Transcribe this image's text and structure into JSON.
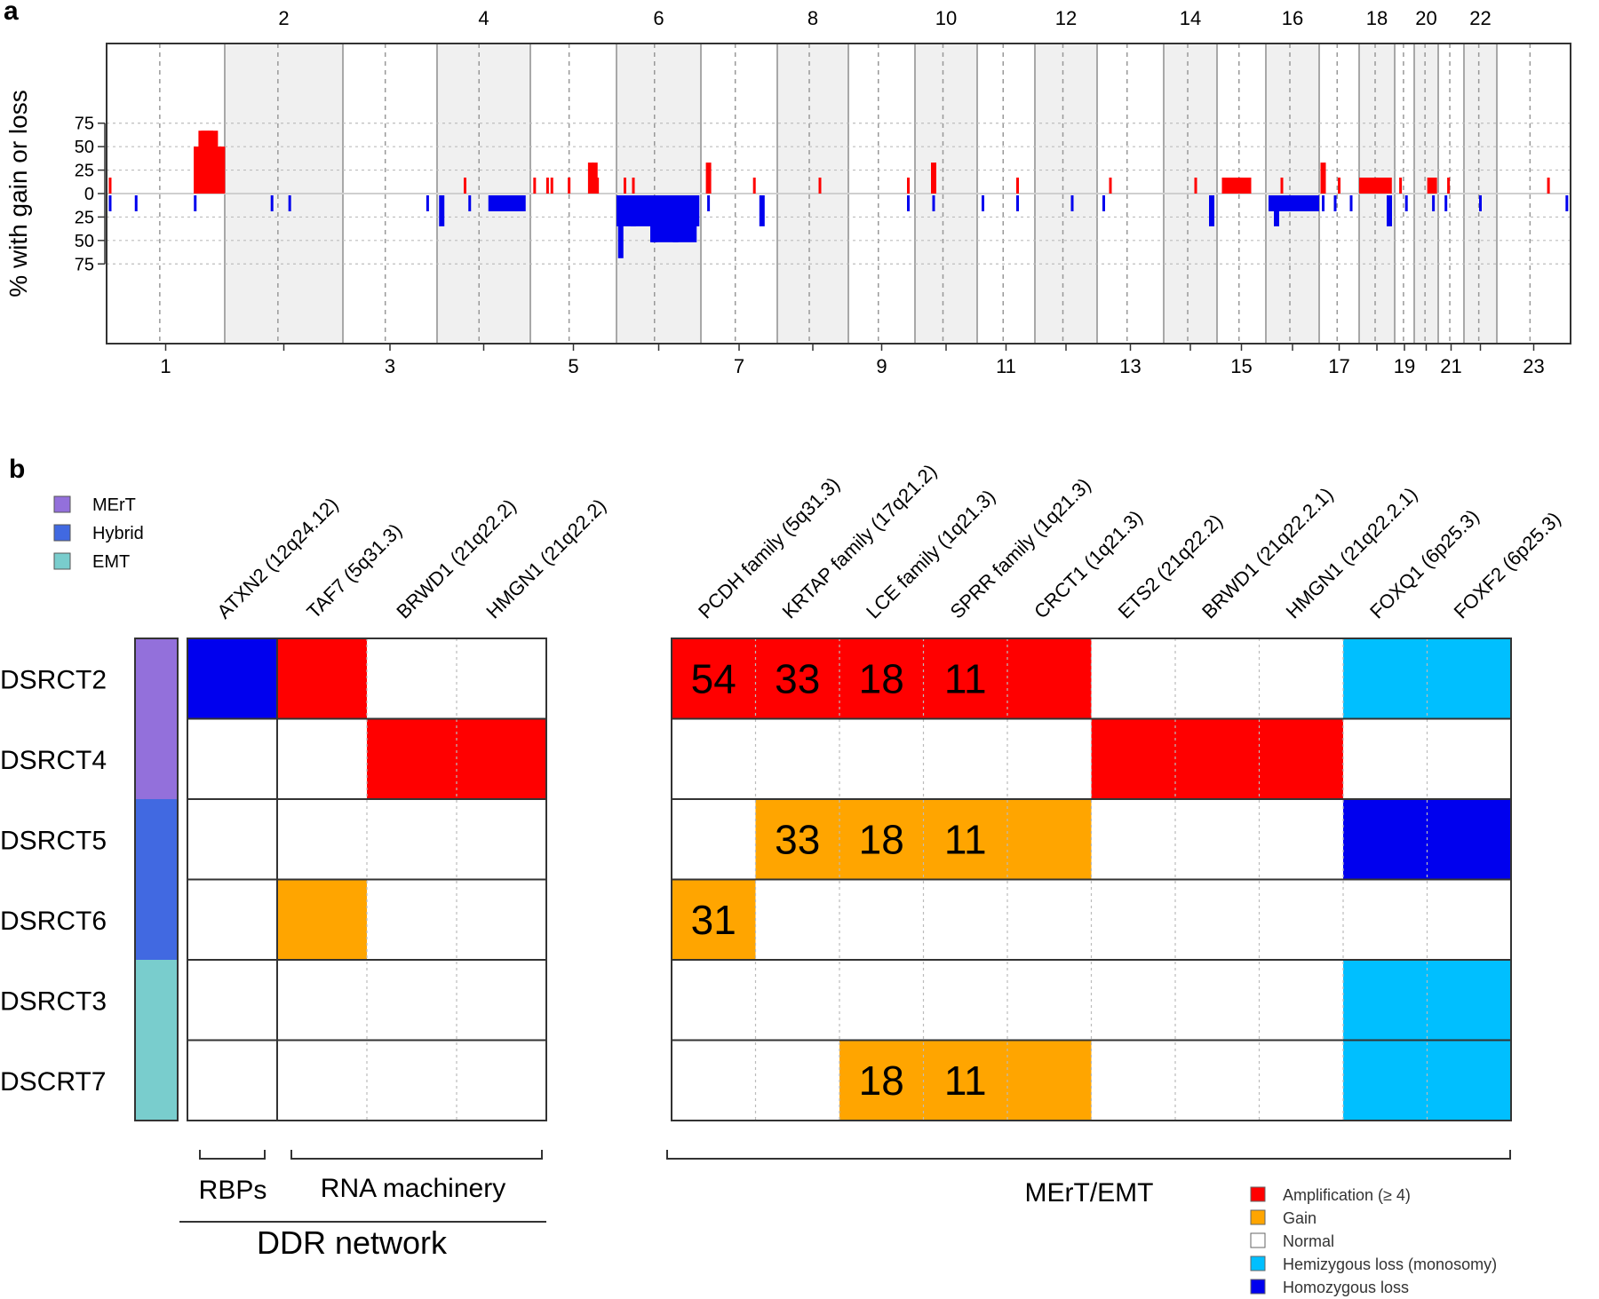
{
  "panel_a": {
    "panel_label": "a",
    "ylabel": "% with gain or loss",
    "y_ticks": [
      "75",
      "50",
      "25",
      "0",
      "25",
      "50",
      "75"
    ],
    "chrom_labels_top": [
      "2",
      "4",
      "6",
      "8",
      "10",
      "12",
      "14",
      "16",
      "18",
      "20",
      "22"
    ],
    "chrom_labels_bottom": [
      "1",
      "3",
      "5",
      "7",
      "9",
      "11",
      "13",
      "15",
      "17",
      "19",
      "21",
      "23"
    ]
  },
  "panel_b": {
    "panel_label": "b",
    "subtype_legend": [
      "MErT",
      "Hybrid",
      "EMT"
    ],
    "left_columns": [
      "ATXN2 (12q24.12)",
      "TAF7 (5q31.3)",
      "BRWD1 (21q22.2)",
      "HMGN1 (21q22.2)"
    ],
    "right_columns": [
      "PCDH family (5q31.3)",
      "KRTAP family (17q21.2)",
      "LCE family (1q21.3)",
      "SPRR family (1q21.3)",
      "CRCT1 (1q21.3)",
      "ETS2 (21q22.2)",
      "BRWD1 (21q22.2.1)",
      "HMGN1 (21q22.2.1)",
      "FOXQ1 (6p25.3)",
      "FOXF2 (6p25.3)"
    ],
    "rows": [
      "DSRCT2",
      "DSRCT4",
      "DSRCT5",
      "DSRCT6",
      "DSRCT3",
      "DSCRT7"
    ],
    "group_labels": {
      "rbps": "RBPs",
      "rna": "RNA machinery",
      "ddr": "DDR network",
      "mert": "MErT/EMT"
    },
    "status_legend": [
      "Amplification (≥ 4)",
      "Gain",
      "Normal",
      "Hemizygous loss (monosomy)",
      "Homozygous loss"
    ]
  },
  "colors": {
    "amplification": "#ff0000",
    "gain": "#ffa500",
    "normal": "#ffffff",
    "hemizygous": "#00bfff",
    "homozygous": "#0000ee",
    "mert": "#9370db",
    "hybrid": "#4169e1",
    "emt": "#79cdcd",
    "chrom_shade": "#f0f0f0"
  },
  "chart_data": [
    {
      "type": "bar",
      "description_note": "",
      "ylabel": "% with gain or loss",
      "ylim": [
        -75,
        75
      ],
      "chromosomes": [
        "1",
        "2",
        "3",
        "4",
        "5",
        "6",
        "7",
        "8",
        "9",
        "10",
        "11",
        "12",
        "13",
        "14",
        "15",
        "16",
        "17",
        "18",
        "19",
        "20",
        "21",
        "22",
        "23"
      ],
      "gain_series": [
        {
          "chrom": "1",
          "pos": 0.03,
          "value": 17
        },
        {
          "chrom": "1",
          "pos": 0.76,
          "value": 50
        },
        {
          "chrom": "1",
          "pos": 0.8,
          "value": 67
        },
        {
          "chrom": "1",
          "pos": 0.84,
          "value": 67
        },
        {
          "chrom": "1",
          "pos": 0.88,
          "value": 67
        },
        {
          "chrom": "1",
          "pos": 0.9,
          "value": 50
        },
        {
          "chrom": "1",
          "pos": 0.92,
          "value": 67
        },
        {
          "chrom": "1",
          "pos": 0.94,
          "value": 33
        },
        {
          "chrom": "1",
          "pos": 0.98,
          "value": 50
        },
        {
          "chrom": "4",
          "pos": 0.3,
          "value": 17
        },
        {
          "chrom": "5",
          "pos": 0.05,
          "value": 17
        },
        {
          "chrom": "5",
          "pos": 0.2,
          "value": 17
        },
        {
          "chrom": "5",
          "pos": 0.25,
          "value": 17
        },
        {
          "chrom": "5",
          "pos": 0.45,
          "value": 17
        },
        {
          "chrom": "5",
          "pos": 0.7,
          "value": 33
        },
        {
          "chrom": "5",
          "pos": 0.75,
          "value": 33
        },
        {
          "chrom": "5",
          "pos": 0.78,
          "value": 17
        },
        {
          "chrom": "6",
          "pos": 0.1,
          "value": 17
        },
        {
          "chrom": "6",
          "pos": 0.2,
          "value": 17
        },
        {
          "chrom": "7",
          "pos": 0.1,
          "value": 33
        },
        {
          "chrom": "7",
          "pos": 0.7,
          "value": 17
        },
        {
          "chrom": "8",
          "pos": 0.6,
          "value": 17
        },
        {
          "chrom": "9",
          "pos": 0.9,
          "value": 17
        },
        {
          "chrom": "10",
          "pos": 0.3,
          "value": 33
        },
        {
          "chrom": "11",
          "pos": 0.7,
          "value": 17
        },
        {
          "chrom": "13",
          "pos": 0.2,
          "value": 17
        },
        {
          "chrom": "14",
          "pos": 0.6,
          "value": 17
        },
        {
          "chrom": "15",
          "pos": 0.5,
          "value": 17
        },
        {
          "chrom": "16",
          "pos": 0.3,
          "value": 17
        },
        {
          "chrom": "17",
          "pos": 0.1,
          "value": 33
        },
        {
          "chrom": "17",
          "pos": 0.5,
          "value": 17
        },
        {
          "chrom": "18",
          "pos": 0.5,
          "value": 17
        },
        {
          "chrom": "19",
          "pos": 0.3,
          "value": 17
        },
        {
          "chrom": "20",
          "pos": 0.6,
          "value": 17
        },
        {
          "chrom": "21",
          "pos": 0.4,
          "value": 17
        },
        {
          "chrom": "23",
          "pos": 0.7,
          "value": 17
        }
      ],
      "loss_series": [
        {
          "chrom": "1",
          "pos": 0.03,
          "value": 17
        },
        {
          "chrom": "1",
          "pos": 0.25,
          "value": 17
        },
        {
          "chrom": "1",
          "pos": 0.75,
          "value": 17
        },
        {
          "chrom": "2",
          "pos": 0.4,
          "value": 17
        },
        {
          "chrom": "2",
          "pos": 0.55,
          "value": 17
        },
        {
          "chrom": "3",
          "pos": 0.9,
          "value": 17
        },
        {
          "chrom": "4",
          "pos": 0.05,
          "value": 33
        },
        {
          "chrom": "4",
          "pos": 0.35,
          "value": 17
        },
        {
          "chrom": "4",
          "pos": 0.7,
          "value": 17
        },
        {
          "chrom": "4",
          "pos": 0.85,
          "value": 17
        },
        {
          "chrom": "6",
          "pos": 0.05,
          "value": 67
        },
        {
          "chrom": "6",
          "pos": 0.2,
          "value": 33
        },
        {
          "chrom": "6",
          "pos": 0.45,
          "value": 50
        },
        {
          "chrom": "6",
          "pos": 0.7,
          "value": 50
        },
        {
          "chrom": "6",
          "pos": 0.95,
          "value": 33
        },
        {
          "chrom": "7",
          "pos": 0.1,
          "value": 17
        },
        {
          "chrom": "7",
          "pos": 0.8,
          "value": 33
        },
        {
          "chrom": "9",
          "pos": 0.9,
          "value": 17
        },
        {
          "chrom": "10",
          "pos": 0.3,
          "value": 17
        },
        {
          "chrom": "11",
          "pos": 0.1,
          "value": 17
        },
        {
          "chrom": "11",
          "pos": 0.7,
          "value": 17
        },
        {
          "chrom": "12",
          "pos": 0.6,
          "value": 17
        },
        {
          "chrom": "13",
          "pos": 0.1,
          "value": 17
        },
        {
          "chrom": "14",
          "pos": 0.9,
          "value": 33
        },
        {
          "chrom": "16",
          "pos": 0.2,
          "value": 33
        },
        {
          "chrom": "16",
          "pos": 0.45,
          "value": 17
        },
        {
          "chrom": "16",
          "pos": 0.75,
          "value": 17
        },
        {
          "chrom": "17",
          "pos": 0.1,
          "value": 17
        },
        {
          "chrom": "17",
          "pos": 0.4,
          "value": 17
        },
        {
          "chrom": "17",
          "pos": 0.8,
          "value": 17
        },
        {
          "chrom": "18",
          "pos": 0.85,
          "value": 33
        },
        {
          "chrom": "19",
          "pos": 0.6,
          "value": 17
        },
        {
          "chrom": "20",
          "pos": 0.8,
          "value": 17
        },
        {
          "chrom": "21",
          "pos": 0.3,
          "value": 17
        },
        {
          "chrom": "22",
          "pos": 0.5,
          "value": 17
        },
        {
          "chrom": "23",
          "pos": 0.95,
          "value": 17
        }
      ]
    },
    {
      "type": "heatmap",
      "rows": [
        "DSRCT2",
        "DSRCT4",
        "DSRCT5",
        "DSRCT6",
        "DSRCT3",
        "DSCRT7"
      ],
      "row_subtypes": [
        "MErT",
        "MErT",
        "Hybrid",
        "Hybrid",
        "EMT",
        "EMT"
      ],
      "left_columns": [
        "ATXN2 (12q24.12)",
        "TAF7 (5q31.3)",
        "BRWD1 (21q22.2)",
        "HMGN1 (21q22.2)"
      ],
      "left_values": [
        [
          "homozygous",
          "amplification",
          "normal",
          "normal"
        ],
        [
          "normal",
          "normal",
          "amplification",
          "amplification"
        ],
        [
          "normal",
          "normal",
          "normal",
          "normal"
        ],
        [
          "normal",
          "gain",
          "normal",
          "normal"
        ],
        [
          "normal",
          "normal",
          "normal",
          "normal"
        ],
        [
          "normal",
          "normal",
          "normal",
          "normal"
        ]
      ],
      "right_columns": [
        "PCDH family (5q31.3)",
        "KRTAP family (17q21.2)",
        "LCE family (1q21.3)",
        "SPRR family (1q21.3)",
        "CRCT1 (1q21.3)",
        "ETS2 (21q22.2)",
        "BRWD1 (21q22.2.1)",
        "HMGN1 (21q22.2.1)",
        "FOXQ1 (6p25.3)",
        "FOXF2 (6p25.3)"
      ],
      "right_values": [
        [
          "amplification",
          "amplification",
          "amplification",
          "amplification",
          "amplification",
          "normal",
          "normal",
          "normal",
          "hemizygous",
          "hemizygous"
        ],
        [
          "normal",
          "normal",
          "normal",
          "normal",
          "normal",
          "amplification",
          "amplification",
          "amplification",
          "normal",
          "normal"
        ],
        [
          "normal",
          "gain",
          "gain",
          "gain",
          "gain",
          "normal",
          "normal",
          "normal",
          "homozygous",
          "homozygous"
        ],
        [
          "gain",
          "normal",
          "normal",
          "normal",
          "normal",
          "normal",
          "normal",
          "normal",
          "normal",
          "normal"
        ],
        [
          "normal",
          "normal",
          "normal",
          "normal",
          "normal",
          "normal",
          "normal",
          "normal",
          "hemizygous",
          "hemizygous"
        ],
        [
          "normal",
          "normal",
          "gain",
          "gain",
          "gain",
          "normal",
          "normal",
          "normal",
          "hemizygous",
          "hemizygous"
        ]
      ],
      "right_cell_labels": [
        [
          "54",
          "33",
          "18",
          "11",
          "",
          "",
          "",
          "",
          "",
          ""
        ],
        [
          "",
          "",
          "",
          "",
          "",
          "",
          "",
          "",
          "",
          ""
        ],
        [
          "",
          "33",
          "18",
          "11",
          "",
          "",
          "",
          "",
          "",
          ""
        ],
        [
          "31",
          "",
          "",
          "",
          "",
          "",
          "",
          "",
          "",
          ""
        ],
        [
          "",
          "",
          "",
          "",
          "",
          "",
          "",
          "",
          "",
          ""
        ],
        [
          "",
          "",
          "18",
          "11",
          "",
          "",
          "",
          "",
          "",
          ""
        ]
      ]
    }
  ]
}
